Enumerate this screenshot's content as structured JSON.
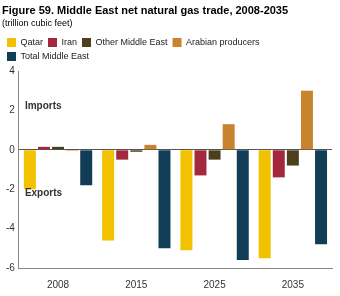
{
  "chart_data": {
    "type": "bar",
    "title": "Figure 59. Middle East net natural gas trade, 2008-2035",
    "subtitle": "(trillion cubic feet)",
    "categories": [
      "2008",
      "2015",
      "2025",
      "2035"
    ],
    "series": [
      {
        "name": "Qatar",
        "color": "#f2c200",
        "values": [
          -2.0,
          -4.6,
          -5.1,
          -5.5
        ]
      },
      {
        "name": "Iran",
        "color": "#a3283e",
        "values": [
          0.15,
          -0.5,
          -1.3,
          -1.4
        ]
      },
      {
        "name": "Other Middle East",
        "color": "#4b3f1c",
        "values": [
          0.15,
          -0.1,
          -0.5,
          -0.8
        ]
      },
      {
        "name": "Arabian producers",
        "color": "#c9822e",
        "values": [
          -0.05,
          0.25,
          1.3,
          3.0
        ]
      },
      {
        "name": "Total Middle East",
        "color": "#113d57",
        "values": [
          -1.8,
          -5.0,
          -5.6,
          -4.8
        ]
      }
    ],
    "ylim": [
      -6,
      4
    ],
    "yticks": [
      -6,
      -4,
      -2,
      0,
      2,
      4
    ],
    "grid": false,
    "legend": "top",
    "annotations": [
      {
        "text": "Imports"
      },
      {
        "text": "Exports"
      }
    ]
  }
}
